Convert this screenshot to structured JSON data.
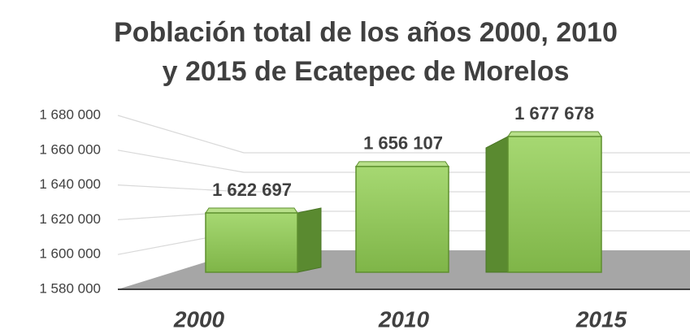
{
  "chart_data": {
    "type": "bar3d",
    "title": [
      "Población total de los años 2000, 2010",
      "y 2015 de Ecatepec de Morelos"
    ],
    "categories": [
      "2000",
      "2010",
      "2015"
    ],
    "values": [
      1622697,
      1656107,
      1677678
    ],
    "value_labels": [
      "1 622 697",
      "1 656 107",
      "1 677 678"
    ],
    "color": "#8cc152",
    "ylim": [
      1580000,
      1680000
    ],
    "yticks": [
      {
        "value": 1580000,
        "label": "1 580 000"
      },
      {
        "value": 1600000,
        "label": "1 600 000"
      },
      {
        "value": 1620000,
        "label": "1 620 000"
      },
      {
        "value": 1640000,
        "label": "1 640 000"
      },
      {
        "value": 1660000,
        "label": "1 660 000"
      },
      {
        "value": 1680000,
        "label": "1 680 000"
      }
    ],
    "grid": true
  }
}
